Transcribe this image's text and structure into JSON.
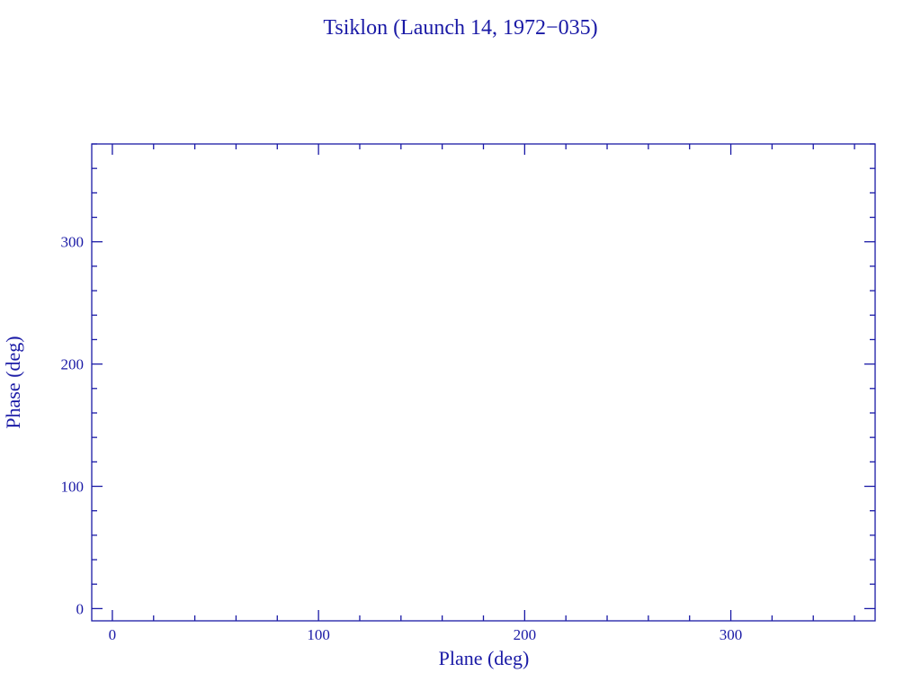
{
  "chart_data": {
    "type": "scatter",
    "title": "Tsiklon (Launch 14, 1972−035)",
    "xlabel": "Plane (deg)",
    "ylabel": "Phase (deg)",
    "xlim": [
      -10,
      370
    ],
    "ylim": [
      -10,
      380
    ],
    "x_ticks": [
      0,
      100,
      200,
      300
    ],
    "x_tick_labels": [
      "0",
      "100",
      "200",
      "300"
    ],
    "y_ticks": [
      0,
      100,
      200,
      300
    ],
    "y_tick_labels": [
      "0",
      "100",
      "200",
      "300"
    ],
    "minor_tick_step": 20,
    "grid": false,
    "points": [],
    "color": "#1a1aa6"
  }
}
